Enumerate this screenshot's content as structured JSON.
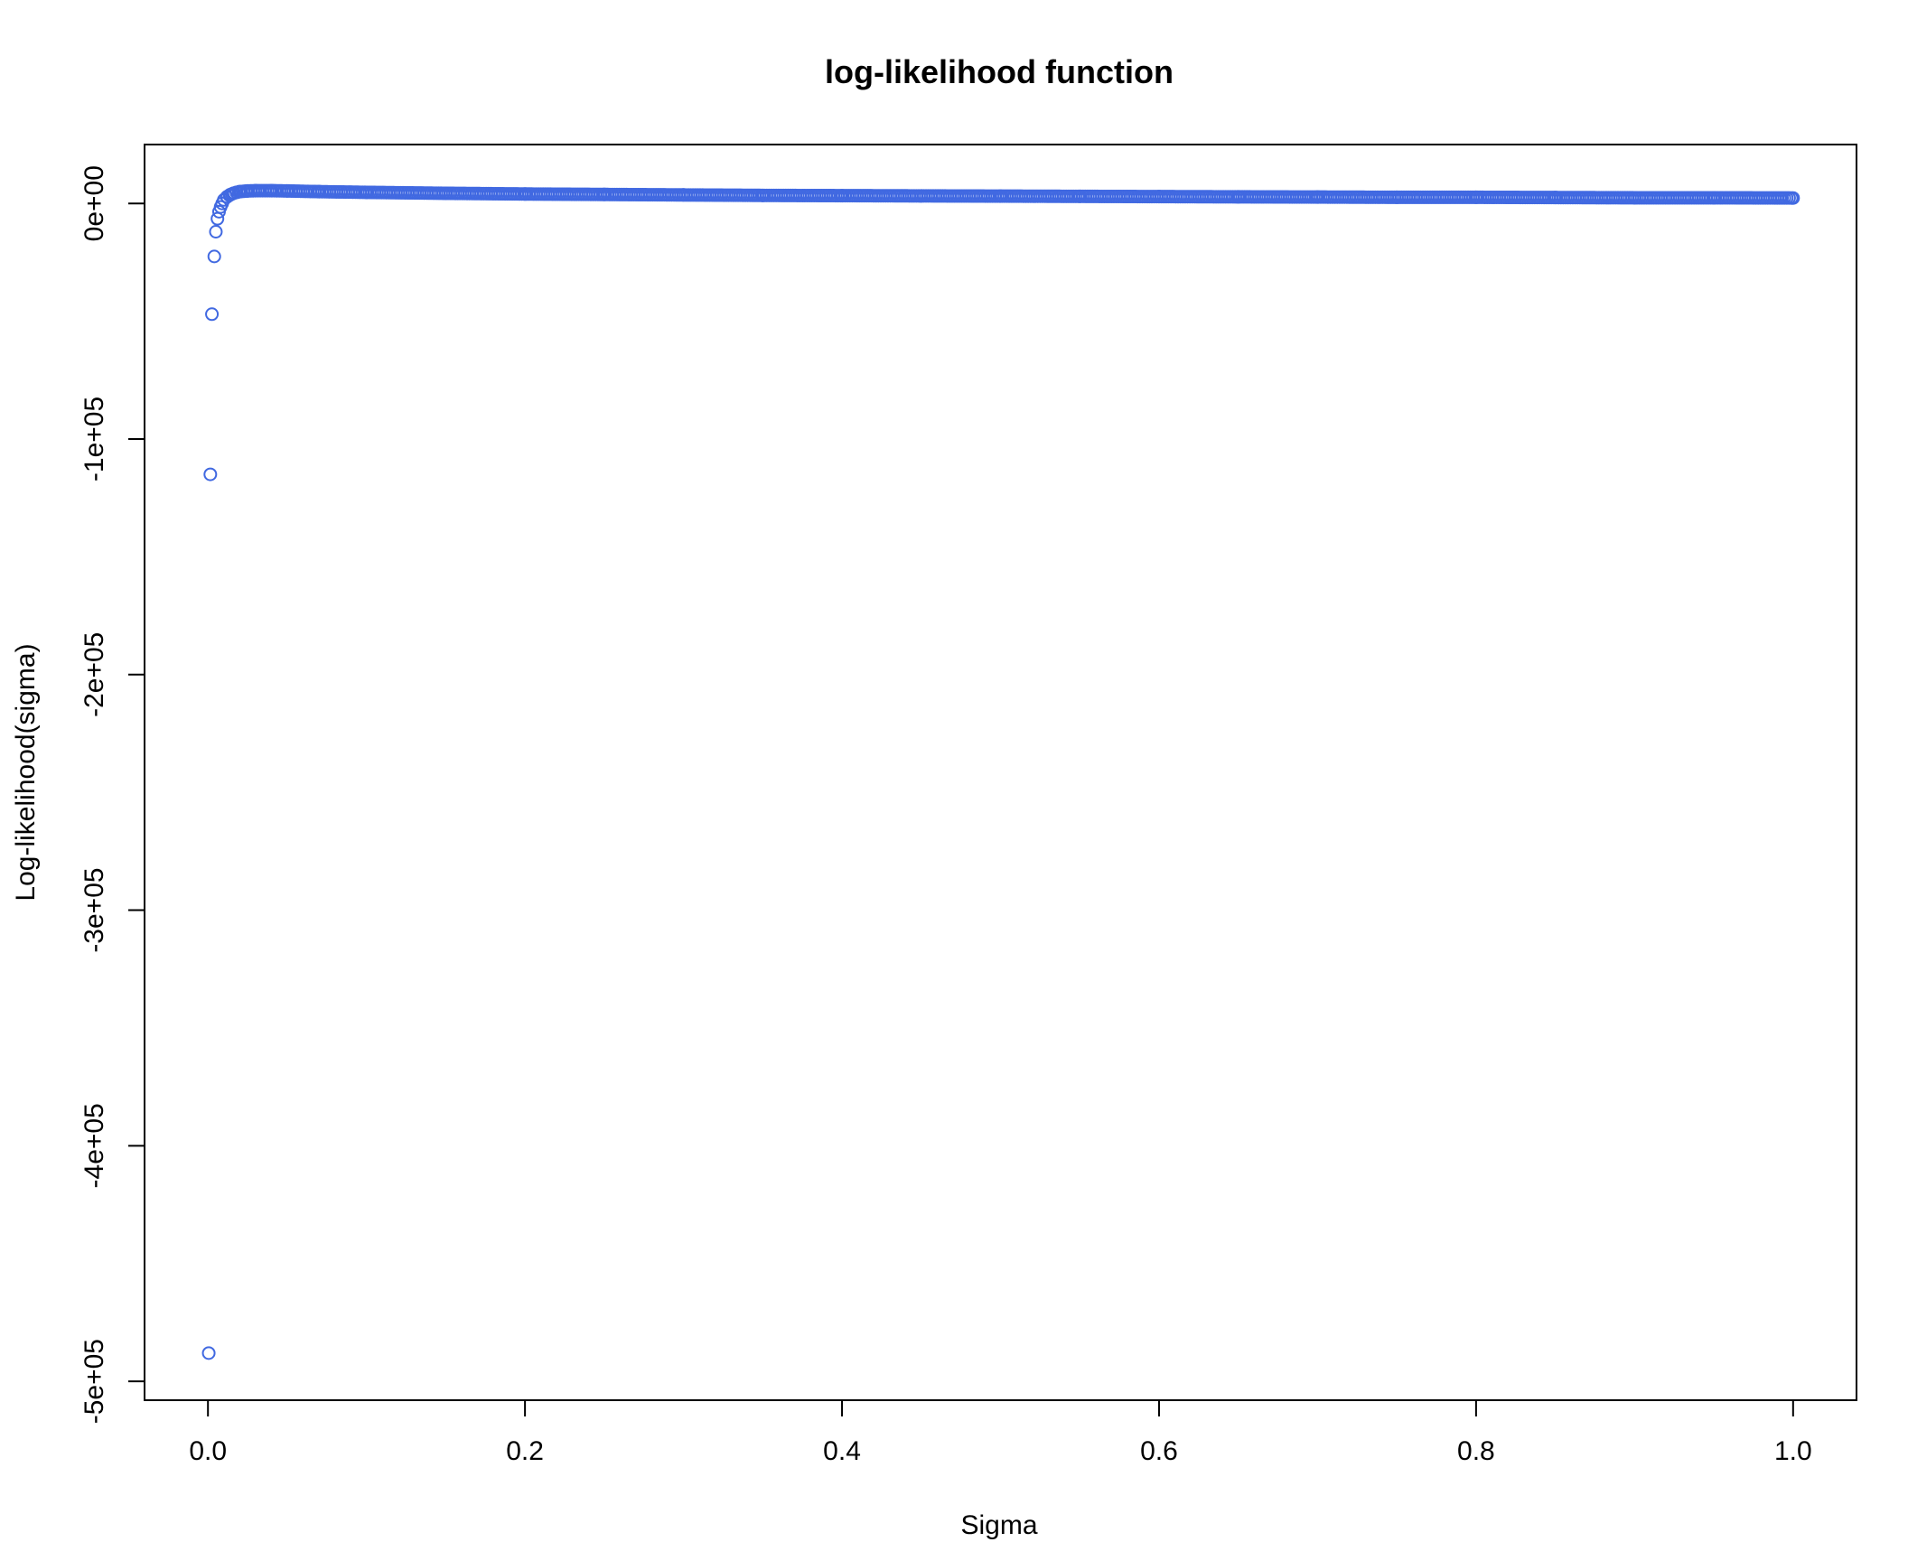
{
  "chart_data": {
    "type": "scatter",
    "title": "log-likelihood function",
    "xlabel": "Sigma",
    "ylabel": "Log-likelihood(sigma)",
    "xlim": [
      -0.04,
      1.04
    ],
    "ylim": [
      -508000,
      25000
    ],
    "x_ticks": [
      {
        "value": 0.0,
        "label": "0.0"
      },
      {
        "value": 0.2,
        "label": "0.2"
      },
      {
        "value": 0.4,
        "label": "0.4"
      },
      {
        "value": 0.6,
        "label": "0.6"
      },
      {
        "value": 0.8,
        "label": "0.8"
      },
      {
        "value": 1.0,
        "label": "1.0"
      }
    ],
    "y_ticks": [
      {
        "value": 0,
        "label": "0e+00"
      },
      {
        "value": -100000,
        "label": "-1e+05"
      },
      {
        "value": -200000,
        "label": "-2e+05"
      },
      {
        "value": -300000,
        "label": "-3e+05"
      },
      {
        "value": -400000,
        "label": "-4e+05"
      },
      {
        "value": -500000,
        "label": "-5e+05"
      }
    ],
    "marker": "open-circle",
    "grid": false,
    "legend": "none",
    "colors": {
      "series": "#4169E1"
    },
    "series": [
      {
        "x": [
          0.0005,
          0.0015,
          0.0025,
          0.004,
          0.005,
          0.006,
          0.007,
          0.008,
          0.009,
          0.01,
          0.012,
          0.014,
          0.016,
          0.018,
          0.02,
          0.025,
          0.03,
          0.04,
          0.05,
          0.07,
          0.1,
          0.15,
          0.2,
          0.25,
          0.3,
          0.35,
          0.4,
          0.45,
          0.5,
          0.55,
          0.6,
          0.65,
          0.7,
          0.75,
          0.8,
          0.85,
          0.9,
          0.95,
          1.0
        ],
        "y": [
          -488000,
          -115000,
          -47000,
          -22500,
          -12000,
          -6500,
          -3500,
          -1500,
          0,
          1500,
          2800,
          3700,
          4300,
          4700,
          5000,
          5300,
          5400,
          5400,
          5300,
          5000,
          4700,
          4300,
          4000,
          3800,
          3600,
          3400,
          3300,
          3200,
          3100,
          3000,
          2900,
          2800,
          2700,
          2600,
          2600,
          2500,
          2400,
          2400,
          2300
        ]
      }
    ]
  }
}
